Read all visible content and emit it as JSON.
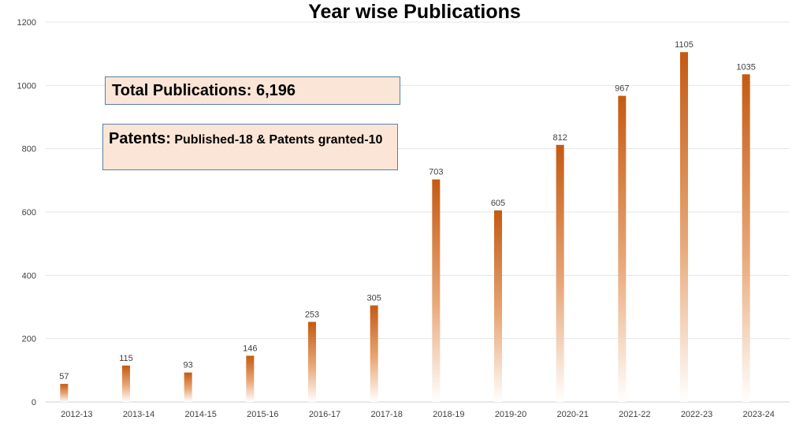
{
  "chart_data": {
    "type": "bar",
    "title": "Year wise Publications",
    "xlabel": "",
    "ylabel": "",
    "categories": [
      "2012-13",
      "2013-14",
      "2014-15",
      "2015-16",
      "2016-17",
      "2017-18",
      "2018-19",
      "2019-20",
      "2020-21",
      "2021-22",
      "2022-23",
      "2023-24"
    ],
    "values": [
      57,
      115,
      93,
      146,
      253,
      305,
      703,
      605,
      812,
      967,
      1105,
      1035
    ],
    "ylim": [
      0,
      1200
    ],
    "yticks": [
      0,
      200,
      400,
      600,
      800,
      1000,
      1200
    ],
    "grid": true,
    "legend": "none",
    "bar_color_top": "#c55a11",
    "bar_color_bottom": "#ffffff",
    "annotations": {
      "total": "Total Publications: 6,196",
      "patents_head": "Patents:",
      "patents_body": "Published-18  &  Patents granted-10"
    }
  }
}
